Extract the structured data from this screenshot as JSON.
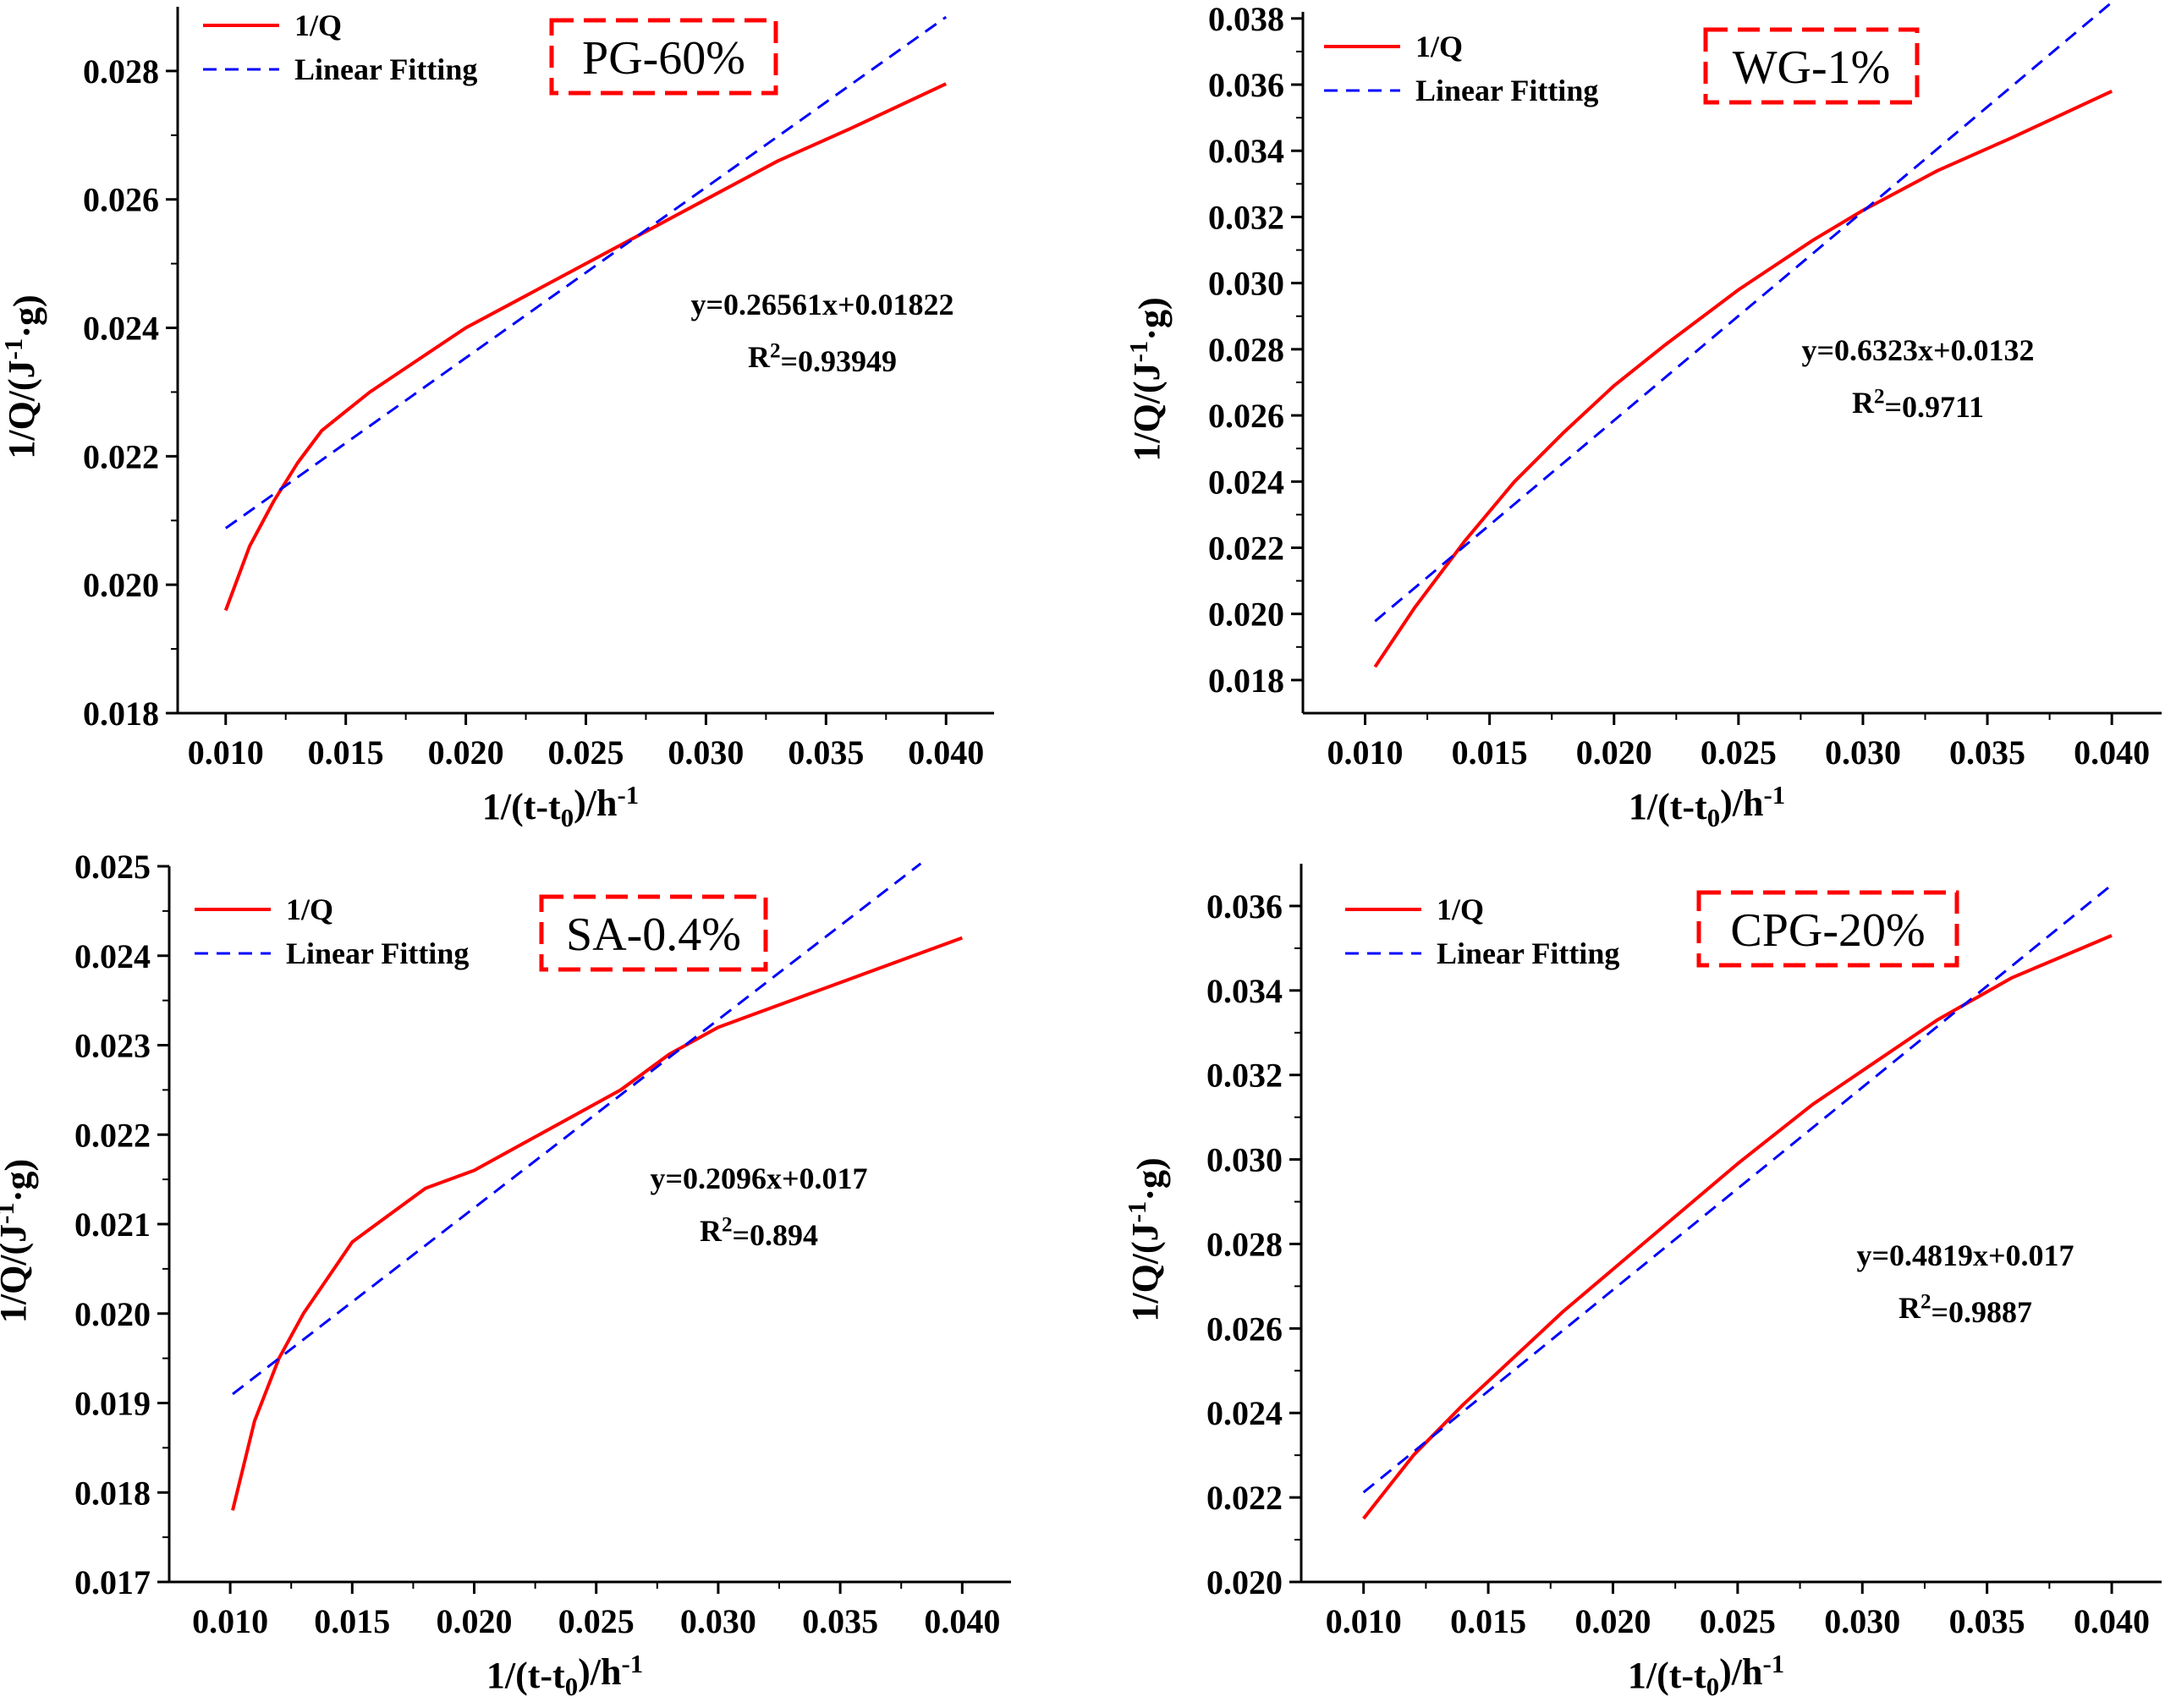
{
  "chart_data": [
    {
      "type": "line",
      "label": "PG-60%",
      "xlabel": "1/(t-t₀)/h⁻¹",
      "ylabel": "1/Q/(J⁻¹·g)",
      "xlim": [
        0.008,
        0.042
      ],
      "ylim": [
        0.018,
        0.029
      ],
      "xticks": [
        0.01,
        0.015,
        0.02,
        0.025,
        0.03,
        0.035,
        0.04
      ],
      "yticks": [
        0.018,
        0.02,
        0.022,
        0.024,
        0.026,
        0.028
      ],
      "tick_decimals": 3,
      "legend": [
        "1/Q",
        "Linear Fitting"
      ],
      "equation": "y=0.26561x+0.01822",
      "r2_label": "R²=0.93949",
      "series": [
        {
          "name": "1/Q",
          "color": "#ff0000",
          "dash": "solid",
          "x": [
            0.01,
            0.011,
            0.012,
            0.013,
            0.014,
            0.015,
            0.016,
            0.018,
            0.02,
            0.022,
            0.025,
            0.028,
            0.03,
            0.033,
            0.036,
            0.04
          ],
          "y": [
            0.0196,
            0.0206,
            0.0213,
            0.0219,
            0.0224,
            0.0227,
            0.023,
            0.0235,
            0.024,
            0.0244,
            0.025,
            0.0256,
            0.026,
            0.0266,
            0.0271,
            0.0278
          ]
        },
        {
          "name": "Linear Fitting",
          "color": "#0000ff",
          "dash": "dashed",
          "x": [
            0.01,
            0.04
          ],
          "y": [
            0.02088,
            0.02884
          ]
        }
      ]
    },
    {
      "type": "line",
      "label": "WG-1%",
      "xlabel": "1/(t-t₀)/h⁻¹",
      "ylabel": "1/Q/(J⁻¹·g)",
      "xlim": [
        0.0075,
        0.042
      ],
      "ylim": [
        0.017,
        0.0382
      ],
      "xticks": [
        0.01,
        0.015,
        0.02,
        0.025,
        0.03,
        0.035,
        0.04
      ],
      "yticks": [
        0.018,
        0.02,
        0.022,
        0.024,
        0.026,
        0.028,
        0.03,
        0.032,
        0.034,
        0.036,
        0.038
      ],
      "tick_decimals": 3,
      "legend": [
        "1/Q",
        "Linear Fitting"
      ],
      "equation": "y=0.6323x+0.0132",
      "r2_label": "R²=0.9711",
      "series": [
        {
          "name": "1/Q",
          "color": "#ff0000",
          "dash": "solid",
          "x": [
            0.0104,
            0.012,
            0.014,
            0.016,
            0.018,
            0.02,
            0.022,
            0.025,
            0.028,
            0.03,
            0.033,
            0.036,
            0.04
          ],
          "y": [
            0.0184,
            0.0202,
            0.0222,
            0.024,
            0.0255,
            0.0269,
            0.0281,
            0.0298,
            0.0313,
            0.0322,
            0.0334,
            0.0344,
            0.0358
          ]
        },
        {
          "name": "Linear Fitting",
          "color": "#0000ff",
          "dash": "dashed",
          "x": [
            0.0104,
            0.04
          ],
          "y": [
            0.01978,
            0.03849
          ]
        }
      ]
    },
    {
      "type": "line",
      "label": "SA-0.4%",
      "xlabel": "1/(t-t₀)/h⁻¹",
      "ylabel": "1/Q/(J⁻¹·g)",
      "xlim": [
        0.0075,
        0.042
      ],
      "ylim": [
        0.017,
        0.025
      ],
      "xticks": [
        0.01,
        0.015,
        0.02,
        0.025,
        0.03,
        0.035,
        0.04
      ],
      "yticks": [
        0.017,
        0.018,
        0.019,
        0.02,
        0.021,
        0.022,
        0.023,
        0.024,
        0.025
      ],
      "tick_decimals": 3,
      "legend": [
        "1/Q",
        "Linear Fitting"
      ],
      "equation": "y=0.2096x+0.017",
      "r2_label": "R²=0.894",
      "series": [
        {
          "name": "1/Q",
          "color": "#ff0000",
          "dash": "solid",
          "x": [
            0.0101,
            0.011,
            0.012,
            0.013,
            0.014,
            0.015,
            0.016,
            0.018,
            0.02,
            0.022,
            0.024,
            0.026,
            0.028,
            0.03,
            0.033,
            0.036,
            0.04
          ],
          "y": [
            0.0178,
            0.0188,
            0.0195,
            0.02,
            0.0204,
            0.0208,
            0.021,
            0.0214,
            0.0216,
            0.0219,
            0.0222,
            0.0225,
            0.0229,
            0.0232,
            0.0235,
            0.0238,
            0.0242
          ]
        },
        {
          "name": "Linear Fitting",
          "color": "#0000ff",
          "dash": "dashed",
          "x": [
            0.0101,
            0.0383
          ],
          "y": [
            0.0191,
            0.02503
          ]
        }
      ]
    },
    {
      "type": "line",
      "label": "CPG-20%",
      "xlabel": "1/(t-t₀)/h⁻¹",
      "ylabel": "1/Q/(J⁻¹·g)",
      "xlim": [
        0.0075,
        0.042
      ],
      "ylim": [
        0.02,
        0.037
      ],
      "xticks": [
        0.01,
        0.015,
        0.02,
        0.025,
        0.03,
        0.035,
        0.04
      ],
      "yticks": [
        0.02,
        0.022,
        0.024,
        0.026,
        0.028,
        0.03,
        0.032,
        0.034,
        0.036
      ],
      "tick_decimals": 3,
      "legend": [
        "1/Q",
        "Linear Fitting"
      ],
      "equation": "y=0.4819x+0.017",
      "r2_label": "R²=0.9887",
      "series": [
        {
          "name": "1/Q",
          "color": "#ff0000",
          "dash": "solid",
          "x": [
            0.01,
            0.012,
            0.014,
            0.016,
            0.018,
            0.02,
            0.022,
            0.025,
            0.028,
            0.03,
            0.033,
            0.036,
            0.04
          ],
          "y": [
            0.0215,
            0.023,
            0.0242,
            0.0253,
            0.0264,
            0.0274,
            0.0284,
            0.0299,
            0.0313,
            0.0321,
            0.0333,
            0.0343,
            0.0353
          ]
        },
        {
          "name": "Linear Fitting",
          "color": "#0000ff",
          "dash": "dashed",
          "x": [
            0.01,
            0.04
          ],
          "y": [
            0.02212,
            0.0365
          ]
        }
      ]
    }
  ]
}
